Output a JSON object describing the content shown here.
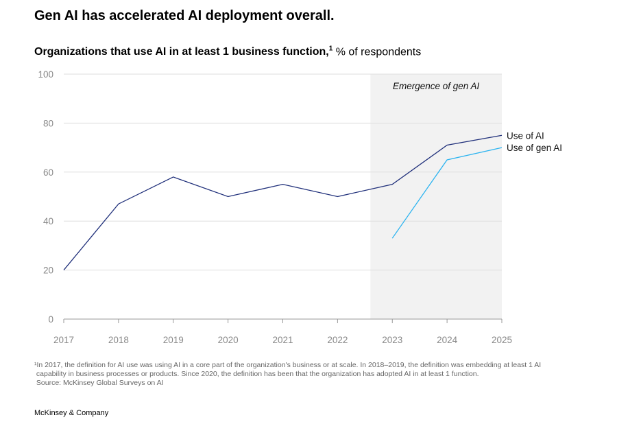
{
  "title": "Gen AI has accelerated AI deployment overall.",
  "subtitle_bold": "Organizations that use AI in at least 1 business function,",
  "subtitle_sup": "1",
  "subtitle_rest": " % of respondents",
  "footnote": [
    "¹In 2017, the definition for AI use was using AI in a core part of the organization's business or at scale. In 2018–2019, the definition was embedding at least 1 AI",
    " capability in business processes or products. Since 2020, the definition has been that the organization has adopted AI in at least 1 function.",
    " Source: McKinsey Global Surveys on AI"
  ],
  "brand": "McKinsey & Company",
  "chart_data": {
    "type": "line",
    "x": [
      2017,
      2018,
      2019,
      2020,
      2021,
      2022,
      2023,
      2024,
      2025
    ],
    "ylim": [
      0,
      100
    ],
    "yticks": [
      0,
      20,
      40,
      60,
      80,
      100
    ],
    "grid": true,
    "series": [
      {
        "name": "Use of AI",
        "color": "#1f2f7a",
        "values": [
          20,
          47,
          58,
          50,
          55,
          50,
          55,
          71,
          75
        ]
      },
      {
        "name": "Use of gen AI",
        "color": "#2ab3f0",
        "values": [
          null,
          null,
          null,
          null,
          null,
          null,
          33,
          65,
          70
        ]
      }
    ],
    "annotation": {
      "text": "Emergence of gen AI",
      "from": 2022.6,
      "to": 2025,
      "color": "#f2f2f2"
    }
  }
}
